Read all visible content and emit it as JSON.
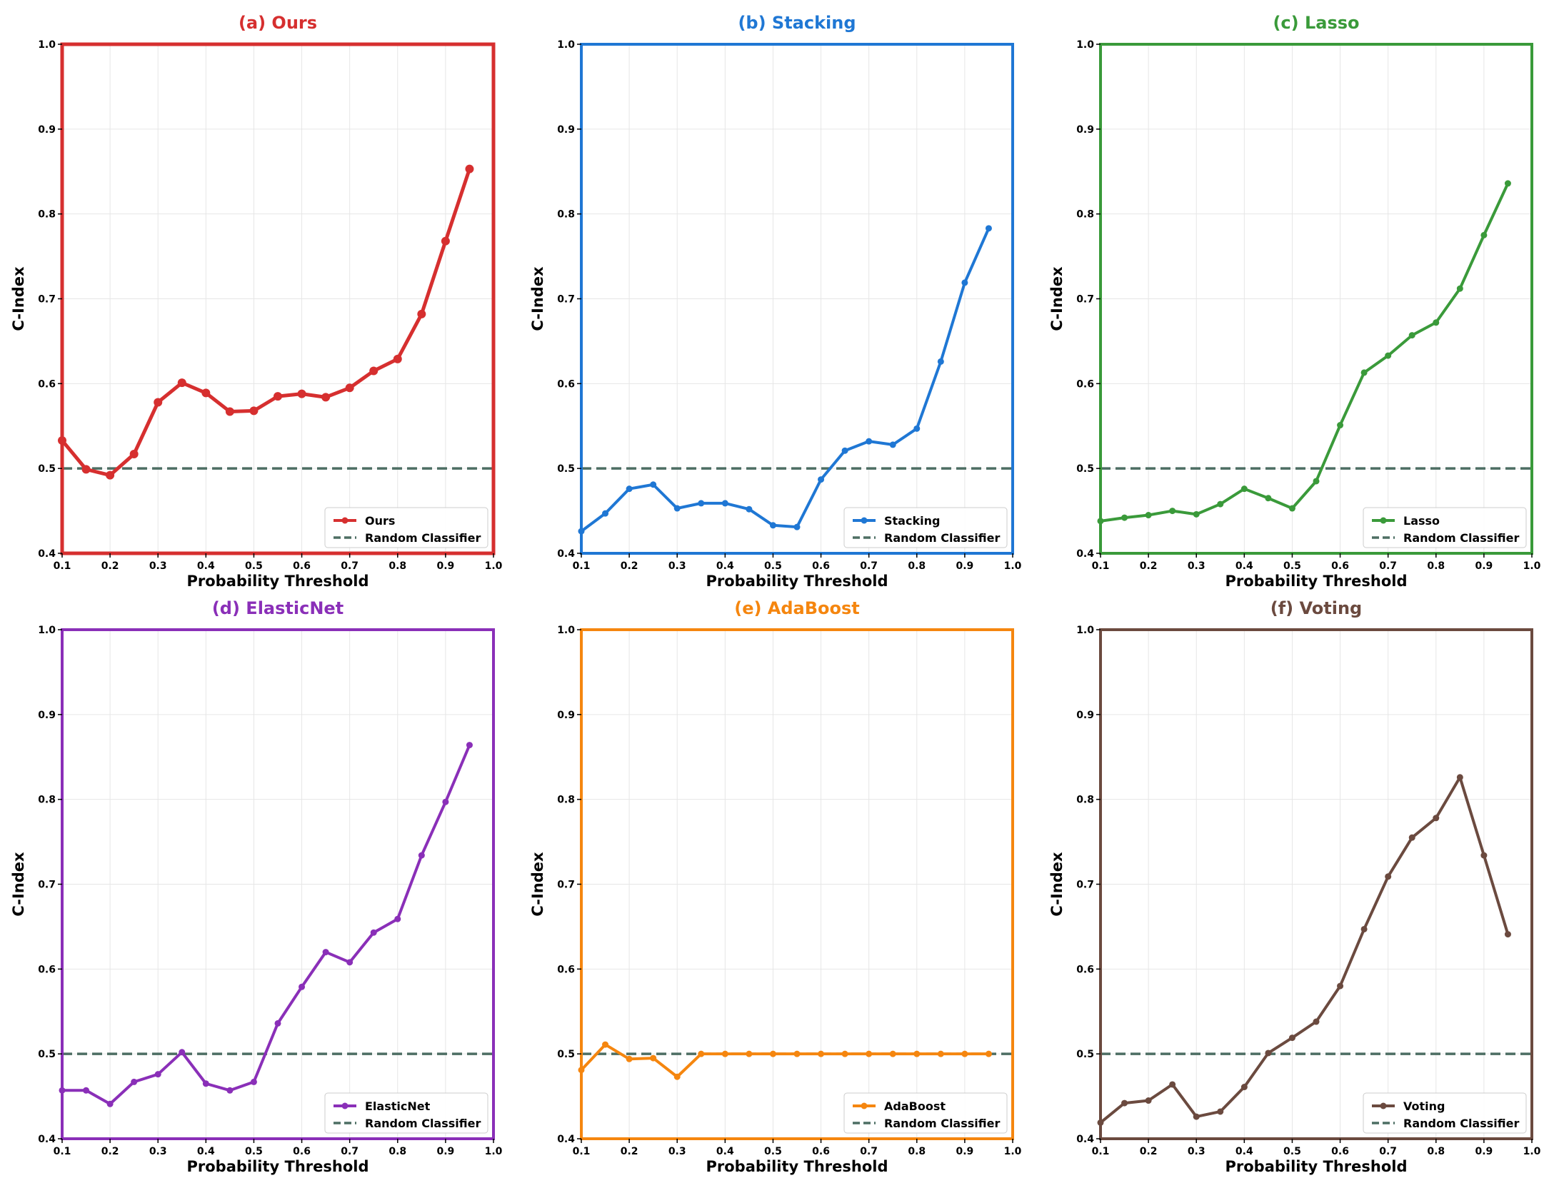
{
  "chart_data": [
    {
      "type": "line",
      "title": "(a) Ours",
      "color": "#d62f2f",
      "xlabel": "Probability Threshold",
      "ylabel": "C-Index",
      "xlim": [
        0.1,
        1.0
      ],
      "ylim": [
        0.4,
        1.0
      ],
      "xticks": [
        "0.1",
        "0.2",
        "0.3",
        "0.4",
        "0.5",
        "0.6",
        "0.7",
        "0.8",
        "0.9",
        "1.0"
      ],
      "yticks": [
        "0.4",
        "0.5",
        "0.6",
        "0.7",
        "0.8",
        "0.9",
        "1.0"
      ],
      "grid": true,
      "legend_position": "bottom-right",
      "x": [
        0.1,
        0.15,
        0.2,
        0.25,
        0.3,
        0.35,
        0.4,
        0.45,
        0.5,
        0.55,
        0.6,
        0.65,
        0.7,
        0.75,
        0.8,
        0.85,
        0.9,
        0.95
      ],
      "series": [
        {
          "name": "Ours",
          "values": [
            0.533,
            0.499,
            0.492,
            0.517,
            0.578,
            0.601,
            0.589,
            0.567,
            0.568,
            0.585,
            0.588,
            0.584,
            0.595,
            0.615,
            0.629,
            0.682,
            0.768,
            0.853
          ]
        },
        {
          "name": "Random Classifier",
          "values": [
            0.5,
            0.5
          ],
          "x": [
            0.1,
            1.0
          ],
          "style": "dashed"
        }
      ]
    },
    {
      "type": "line",
      "title": "(b) Stacking",
      "color": "#1f77d4",
      "xlabel": "Probability Threshold",
      "ylabel": "C-Index",
      "xlim": [
        0.1,
        1.0
      ],
      "ylim": [
        0.4,
        1.0
      ],
      "xticks": [
        "0.1",
        "0.2",
        "0.3",
        "0.4",
        "0.5",
        "0.6",
        "0.7",
        "0.8",
        "0.9",
        "1.0"
      ],
      "yticks": [
        "0.4",
        "0.5",
        "0.6",
        "0.7",
        "0.8",
        "0.9",
        "1.0"
      ],
      "grid": true,
      "legend_position": "bottom-right",
      "x": [
        0.1,
        0.15,
        0.2,
        0.25,
        0.3,
        0.35,
        0.4,
        0.45,
        0.5,
        0.55,
        0.6,
        0.65,
        0.7,
        0.75,
        0.8,
        0.85,
        0.9,
        0.95
      ],
      "series": [
        {
          "name": "Stacking",
          "values": [
            0.426,
            0.447,
            0.476,
            0.481,
            0.453,
            0.459,
            0.459,
            0.452,
            0.433,
            0.431,
            0.487,
            0.521,
            0.532,
            0.528,
            0.547,
            0.626,
            0.719,
            0.783
          ]
        },
        {
          "name": "Random Classifier",
          "values": [
            0.5,
            0.5
          ],
          "x": [
            0.1,
            1.0
          ],
          "style": "dashed"
        }
      ]
    },
    {
      "type": "line",
      "title": "(c) Lasso",
      "color": "#3a9a3a",
      "xlabel": "Probability Threshold",
      "ylabel": "C-Index",
      "xlim": [
        0.1,
        1.0
      ],
      "ylim": [
        0.4,
        1.0
      ],
      "xticks": [
        "0.1",
        "0.2",
        "0.3",
        "0.4",
        "0.5",
        "0.6",
        "0.7",
        "0.8",
        "0.9",
        "1.0"
      ],
      "yticks": [
        "0.4",
        "0.5",
        "0.6",
        "0.7",
        "0.8",
        "0.9",
        "1.0"
      ],
      "grid": true,
      "legend_position": "bottom-right",
      "x": [
        0.1,
        0.15,
        0.2,
        0.25,
        0.3,
        0.35,
        0.4,
        0.45,
        0.5,
        0.55,
        0.6,
        0.65,
        0.7,
        0.75,
        0.8,
        0.85,
        0.9,
        0.95
      ],
      "series": [
        {
          "name": "Lasso",
          "values": [
            0.438,
            0.442,
            0.445,
            0.45,
            0.446,
            0.458,
            0.476,
            0.465,
            0.453,
            0.485,
            0.551,
            0.613,
            0.633,
            0.657,
            0.672,
            0.712,
            0.775,
            0.836
          ]
        },
        {
          "name": "Random Classifier",
          "values": [
            0.5,
            0.5
          ],
          "x": [
            0.1,
            1.0
          ],
          "style": "dashed"
        }
      ]
    },
    {
      "type": "line",
      "title": "(d) ElasticNet",
      "color": "#8a2fb8",
      "xlabel": "Probability Threshold",
      "ylabel": "C-Index",
      "xlim": [
        0.1,
        1.0
      ],
      "ylim": [
        0.4,
        1.0
      ],
      "xticks": [
        "0.1",
        "0.2",
        "0.3",
        "0.4",
        "0.5",
        "0.6",
        "0.7",
        "0.8",
        "0.9",
        "1.0"
      ],
      "yticks": [
        "0.4",
        "0.5",
        "0.6",
        "0.7",
        "0.8",
        "0.9",
        "1.0"
      ],
      "grid": true,
      "legend_position": "bottom-right",
      "x": [
        0.1,
        0.15,
        0.2,
        0.25,
        0.3,
        0.35,
        0.4,
        0.45,
        0.5,
        0.55,
        0.6,
        0.65,
        0.7,
        0.75,
        0.8,
        0.85,
        0.9,
        0.95
      ],
      "series": [
        {
          "name": "ElasticNet",
          "values": [
            0.457,
            0.457,
            0.441,
            0.467,
            0.476,
            0.502,
            0.465,
            0.457,
            0.467,
            0.536,
            0.579,
            0.62,
            0.608,
            0.643,
            0.659,
            0.734,
            0.797,
            0.864
          ]
        },
        {
          "name": "Random Classifier",
          "values": [
            0.5,
            0.5
          ],
          "x": [
            0.1,
            1.0
          ],
          "style": "dashed"
        }
      ]
    },
    {
      "type": "line",
      "title": "(e) AdaBoost",
      "color": "#f5860f",
      "xlabel": "Probability Threshold",
      "ylabel": "C-Index",
      "xlim": [
        0.1,
        1.0
      ],
      "ylim": [
        0.4,
        1.0
      ],
      "xticks": [
        "0.1",
        "0.2",
        "0.3",
        "0.4",
        "0.5",
        "0.6",
        "0.7",
        "0.8",
        "0.9",
        "1.0"
      ],
      "yticks": [
        "0.4",
        "0.5",
        "0.6",
        "0.7",
        "0.8",
        "0.9",
        "1.0"
      ],
      "grid": true,
      "legend_position": "bottom-right",
      "x": [
        0.1,
        0.15,
        0.2,
        0.25,
        0.3,
        0.35,
        0.4,
        0.45,
        0.5,
        0.55,
        0.6,
        0.65,
        0.7,
        0.75,
        0.8,
        0.85,
        0.9,
        0.95
      ],
      "series": [
        {
          "name": "AdaBoost",
          "values": [
            0.481,
            0.511,
            0.494,
            0.495,
            0.473,
            0.5,
            0.5,
            0.5,
            0.5,
            0.5,
            0.5,
            0.5,
            0.5,
            0.5,
            0.5,
            0.5,
            0.5,
            0.5
          ]
        },
        {
          "name": "Random Classifier",
          "values": [
            0.5,
            0.5
          ],
          "x": [
            0.1,
            1.0
          ],
          "style": "dashed"
        }
      ]
    },
    {
      "type": "line",
      "title": "(f) Voting",
      "color": "#6b4a3f",
      "xlabel": "Probability Threshold",
      "ylabel": "C-Index",
      "xlim": [
        0.1,
        1.0
      ],
      "ylim": [
        0.4,
        1.0
      ],
      "xticks": [
        "0.1",
        "0.2",
        "0.3",
        "0.4",
        "0.5",
        "0.6",
        "0.7",
        "0.8",
        "0.9",
        "1.0"
      ],
      "yticks": [
        "0.4",
        "0.5",
        "0.6",
        "0.7",
        "0.8",
        "0.9",
        "1.0"
      ],
      "grid": true,
      "legend_position": "bottom-right",
      "x": [
        0.1,
        0.15,
        0.2,
        0.25,
        0.3,
        0.35,
        0.4,
        0.45,
        0.5,
        0.55,
        0.6,
        0.65,
        0.7,
        0.75,
        0.8,
        0.85,
        0.9,
        0.95
      ],
      "series": [
        {
          "name": "Voting",
          "values": [
            0.419,
            0.442,
            0.445,
            0.464,
            0.426,
            0.432,
            0.461,
            0.501,
            0.519,
            0.538,
            0.58,
            0.647,
            0.709,
            0.755,
            0.778,
            0.826,
            0.734,
            0.641
          ]
        },
        {
          "name": "Random Classifier",
          "values": [
            0.5,
            0.5
          ],
          "x": [
            0.1,
            1.0
          ],
          "style": "dashed"
        }
      ]
    }
  ],
  "random_classifier_color": "#4d6e63"
}
